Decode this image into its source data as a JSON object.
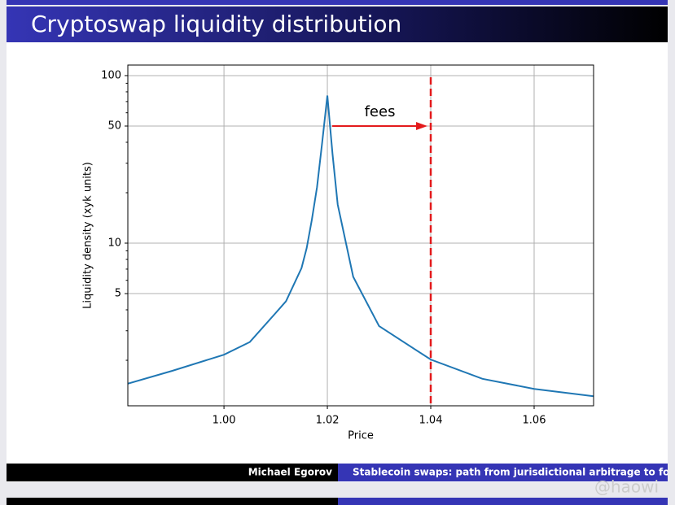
{
  "slide": {
    "title": "Cryptoswap liquidity distribution",
    "author": "Michael Egorov",
    "talk": "Stablecoin swaps: path from jurisdictional arbitrage to foreign exchange",
    "watermark": "@haowi"
  },
  "chart_data": {
    "type": "line",
    "x": [
      0.9814,
      0.99,
      1.0,
      1.005,
      1.01,
      1.012,
      1.015,
      1.016,
      1.017,
      1.018,
      1.019,
      1.02,
      1.021,
      1.022,
      1.025,
      1.03,
      1.04,
      1.05,
      1.06,
      1.0715
    ],
    "series": [
      {
        "name": "Liquidity density",
        "color": "#1f77b4",
        "values": [
          1.45,
          1.73,
          2.16,
          2.57,
          3.83,
          4.5,
          7.1,
          9.35,
          13.8,
          21.6,
          40,
          76,
          34,
          17,
          6.3,
          3.2,
          2.02,
          1.55,
          1.35,
          1.22
        ]
      }
    ],
    "xlabel": "Price",
    "ylabel": "Liquidity density (xyk units)",
    "xlim": [
      0.9814,
      1.0715
    ],
    "xticks": [
      {
        "value": 1.0,
        "label": "1.00"
      },
      {
        "value": 1.02,
        "label": "1.02"
      },
      {
        "value": 1.04,
        "label": "1.04"
      },
      {
        "value": 1.06,
        "label": "1.06"
      }
    ],
    "ylim": [
      1.07,
      115.6
    ],
    "yticks": [
      5,
      10,
      50,
      100
    ],
    "yminorticks": [
      2,
      3,
      4,
      6,
      7,
      8,
      9,
      20,
      30,
      40,
      60,
      70,
      80,
      90
    ],
    "ylog": true,
    "grid": true,
    "vline": {
      "x": 1.04,
      "color": "#e31a1c"
    },
    "annotation": {
      "text": "fees",
      "color": "#e31a1c"
    }
  }
}
